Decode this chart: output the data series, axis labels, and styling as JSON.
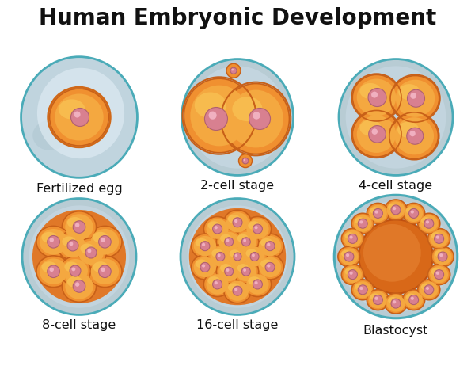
{
  "title": "Human Embryonic Development",
  "title_fontsize": 20,
  "title_fontweight": "bold",
  "background_color": "#ffffff",
  "stages": [
    {
      "label": "Fertilized egg"
    },
    {
      "label": "2-cell stage"
    },
    {
      "label": "4-cell stage"
    },
    {
      "label": "8-cell stage"
    },
    {
      "label": "16-cell stage"
    },
    {
      "label": "Blastocyst"
    }
  ],
  "zona_outer_color": "#b8ced8",
  "zona_outer_edge": "#4aabb8",
  "zona_inner_color": "#d0e2ea",
  "cell_orange_dark": "#e87828",
  "cell_orange_mid": "#f09030",
  "cell_orange_light": "#f8b848",
  "cell_edge": "#c86018",
  "nucleus_fill": "#d88090",
  "nucleus_edge": "#b06070",
  "blasto_cavity": "#e07828",
  "label_fontsize": 11.5
}
